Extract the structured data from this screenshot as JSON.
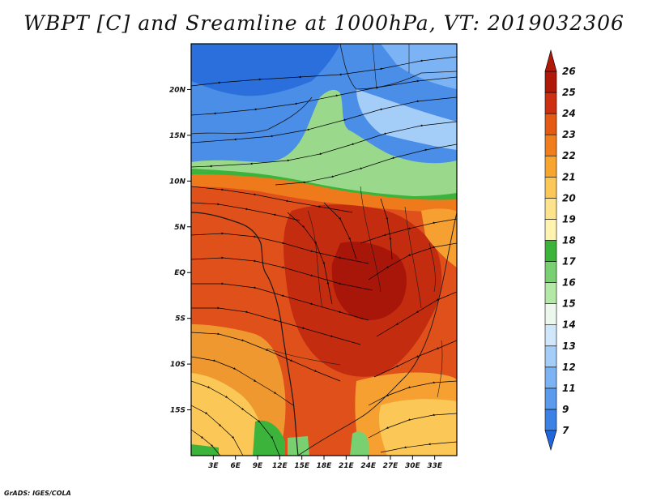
{
  "title": "WBPT [C] and Sreamline at 1000hPa, VT: 2019032306",
  "footer": "GrADS: IGES/COLA",
  "map": {
    "lon_range": [
      0,
      36
    ],
    "lat_range": [
      -20,
      25
    ],
    "lon_ticks": [
      "3E",
      "6E",
      "9E",
      "12E",
      "15E",
      "18E",
      "21E",
      "24E",
      "27E",
      "30E",
      "33E"
    ],
    "lat_ticks": [
      "20N",
      "15N",
      "10N",
      "5N",
      "EQ",
      "5S",
      "10S",
      "15S"
    ]
  },
  "colorbar": {
    "levels": [
      "7",
      "9",
      "11",
      "12",
      "13",
      "14",
      "15",
      "16",
      "17",
      "18",
      "19",
      "20",
      "21",
      "22",
      "23",
      "24",
      "25",
      "26"
    ],
    "colors": [
      "#2166dc",
      "#3c82e6",
      "#5a9bee",
      "#7cb3f4",
      "#a4cdf8",
      "#cfe6fb",
      "#ecf8ee",
      "#b4e8a6",
      "#78d070",
      "#3cb43c",
      "#fff3b0",
      "#fde38c",
      "#fbc858",
      "#f8a530",
      "#f07e1c",
      "#e55a12",
      "#cc3010",
      "#b01808"
    ]
  }
}
